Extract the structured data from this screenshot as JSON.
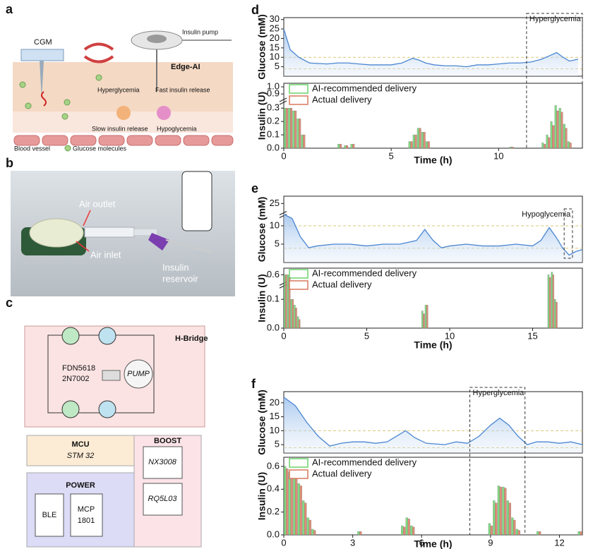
{
  "panels": {
    "a": {
      "label": "a",
      "cgm": "CGM",
      "insulin_pump": "Insulin pump",
      "edge_ai": "Edge-AI",
      "hyperglycemia": "Hyperglycemia",
      "fast_release": "Fast insulin release",
      "slow_release": "Slow insulin release",
      "hypoglycemia": "Hypoglycemia",
      "blood_vessel": "Blood vessel",
      "glucose_molecules": "Glucose molecules"
    },
    "b": {
      "label": "b",
      "air_outlet": "Air outlet",
      "air_inlet": "Air inlet",
      "insulin_1": "Insulin",
      "insulin_2": "reservoir"
    },
    "c": {
      "label": "c",
      "h_bridge": "H-Bridge",
      "fdn": "FDN5618",
      "n7002": "2N7002",
      "pump": "PUMP",
      "mcu": "MCU",
      "stm": "STM 32",
      "boost": "BOOST",
      "nx": "NX3008",
      "power": "POWER",
      "ble": "BLE",
      "mcp": "MCP",
      "mcp_num": "1801",
      "rq": "RQ5L03"
    }
  },
  "chart_data": [
    {
      "type": "line",
      "panel": "d",
      "y_label": "Glucose (mM)",
      "color": "#4a86d0",
      "x": [
        0,
        0.3,
        0.7,
        1.2,
        2,
        2.5,
        3,
        3.5,
        4,
        4.5,
        5,
        5.5,
        6,
        6.3,
        6.6,
        7,
        7.5,
        8,
        8.5,
        9,
        9.5,
        10,
        10.5,
        11,
        11.5,
        12,
        12.4,
        12.7,
        13,
        13.3,
        13.7
      ],
      "values": [
        25,
        14,
        10,
        7,
        6.5,
        7,
        7,
        6.5,
        6,
        6,
        6,
        7,
        9.5,
        8.5,
        7,
        6,
        5.5,
        5.5,
        5,
        6,
        6,
        6.5,
        7,
        7,
        7.5,
        9,
        11,
        12.5,
        10,
        8,
        9
      ],
      "xlim": [
        0,
        13.9
      ],
      "ylim": [
        0,
        31
      ],
      "yticks": [
        5,
        10,
        15,
        20,
        25,
        30
      ],
      "reference_lines": [
        3.9,
        10
      ],
      "annotation": {
        "text": "Hyperglycemia",
        "x": [
          11.3,
          13.9
        ]
      }
    },
    {
      "type": "bar",
      "y_label": "Insulin (U)",
      "x_label": "Time (h)",
      "x": [
        0.1,
        0.3,
        0.5,
        0.7,
        0.9,
        2.6,
        2.9,
        3.2,
        5.9,
        6.1,
        6.3,
        6.5,
        6.7,
        10.6,
        12.1,
        12.3,
        12.5,
        12.7,
        12.9,
        13.1,
        13.3
      ],
      "series": [
        {
          "name": "AI-recommended delivery",
          "color": "#6cd46c",
          "values": [
            0.3,
            0.3,
            0.28,
            0.22,
            0.1,
            0.03,
            0.02,
            0.03,
            0.05,
            0.1,
            0.15,
            0.12,
            0.05,
            0.01,
            0.04,
            0.1,
            0.2,
            0.32,
            0.3,
            0.18,
            0.05
          ]
        },
        {
          "name": "Actual delivery",
          "color": "#d9795f",
          "values": [
            0.3,
            0.3,
            0.28,
            0.22,
            0.1,
            0.03,
            0.02,
            0.03,
            0.05,
            0.1,
            0.15,
            0.12,
            0.05,
            0.01,
            0.03,
            0.08,
            0.17,
            0.28,
            0.27,
            0.15,
            0.04
          ]
        }
      ],
      "xlim": [
        0,
        13.9
      ],
      "xticks": [
        0,
        5,
        10
      ],
      "ylim": [
        0,
        1.05
      ],
      "ybreak": [
        0.35,
        0.85
      ],
      "yticks": [
        {
          "value": 0,
          "label": "0.0"
        },
        0.1,
        0.2,
        0.3,
        0.9,
        {
          "value": 1,
          "label": "1.0"
        }
      ]
    },
    {
      "type": "line",
      "panel": "e",
      "y_label": "Glucose (mM)",
      "color": "#4a86d0",
      "x": [
        0,
        0.5,
        1,
        1.5,
        2,
        3,
        4,
        5,
        6,
        7,
        8,
        8.5,
        9,
        9.5,
        10,
        11,
        12,
        13,
        14,
        15,
        15.5,
        16,
        16.4,
        16.8,
        17.2,
        17.6,
        18
      ],
      "values": [
        14,
        12,
        7,
        4,
        4.5,
        5,
        5,
        4.5,
        5,
        5,
        6,
        9,
        6,
        4,
        4.5,
        5,
        4.5,
        4.5,
        5,
        4.5,
        6,
        9.5,
        7,
        4,
        2,
        3,
        3.5
      ],
      "xlim": [
        0,
        18
      ],
      "ylim": [
        0,
        28
      ],
      "ybreak": [
        13,
        22
      ],
      "yticks": [
        5,
        10,
        25
      ],
      "reference_lines": [
        3.9,
        10
      ],
      "annotation": {
        "text": "Hypoglycemia",
        "x": [
          16.9,
          17.4
        ]
      }
    },
    {
      "type": "bar",
      "y_label": "Insulin (U)",
      "x_label": "Time (h)",
      "x": [
        0.1,
        0.3,
        0.5,
        0.7,
        0.9,
        8.4,
        8.6,
        16.0,
        16.2,
        16.4
      ],
      "series": [
        {
          "name": "AI-recommended delivery",
          "color": "#6cd46c",
          "values": [
            0.6,
            0.6,
            0.1,
            0.08,
            0.04,
            0.06,
            0.08,
            0.6,
            0.62,
            0.1
          ]
        },
        {
          "name": "Actual delivery",
          "color": "#d9795f",
          "values": [
            0.6,
            0.58,
            0.1,
            0.07,
            0.03,
            0.05,
            0.08,
            0.58,
            0.6,
            0.09
          ]
        }
      ],
      "xlim": [
        0,
        18
      ],
      "xticks": [
        0,
        5,
        10,
        15
      ],
      "ylim": [
        0,
        0.65
      ],
      "ybreak": [
        0.15,
        0.55
      ],
      "yticks": [
        {
          "value": 0,
          "label": "0.0"
        },
        0.1,
        0.6
      ]
    },
    {
      "type": "line",
      "panel": "f",
      "y_label": "Glucose (mM)",
      "color": "#4a86d0",
      "x": [
        0,
        0.5,
        1,
        1.5,
        2,
        2.5,
        3,
        3.5,
        4,
        4.5,
        5,
        5.3,
        5.7,
        6.2,
        7,
        7.5,
        8,
        8.5,
        9,
        9.4,
        9.8,
        10.2,
        10.6,
        11,
        11.5,
        12,
        12.5,
        13
      ],
      "values": [
        22,
        19,
        13,
        8,
        4.5,
        5.5,
        6,
        6,
        5.5,
        6,
        8.5,
        10,
        7.5,
        5.5,
        5,
        6,
        5.5,
        8,
        12,
        14.5,
        12,
        8,
        5,
        6,
        6,
        5.5,
        6,
        5
      ],
      "xlim": [
        0,
        13
      ],
      "ylim": [
        2,
        24
      ],
      "yticks": [
        5,
        10,
        15,
        20
      ],
      "reference_lines": [
        3.9,
        10
      ],
      "annotation": {
        "text": "Hyperglycemia",
        "x": [
          8.1,
          10.5
        ]
      }
    },
    {
      "type": "bar",
      "y_label": "Insulin (U)",
      "x_label": "Time (h)",
      "x": [
        0.1,
        0.3,
        0.5,
        0.7,
        0.9,
        1.1,
        1.3,
        3.3,
        5.2,
        5.4,
        5.6,
        9.0,
        9.2,
        9.4,
        9.6,
        9.8,
        10.0,
        10.2,
        11.1,
        12.9
      ],
      "series": [
        {
          "name": "AI-recommended delivery",
          "color": "#6cd46c",
          "values": [
            0.6,
            0.55,
            0.52,
            0.45,
            0.3,
            0.15,
            0.05,
            0.03,
            0.08,
            0.15,
            0.08,
            0.1,
            0.3,
            0.43,
            0.42,
            0.3,
            0.15,
            0.05,
            0.03,
            0.03
          ]
        },
        {
          "name": "Actual delivery",
          "color": "#d9795f",
          "values": [
            0.58,
            0.53,
            0.5,
            0.43,
            0.28,
            0.13,
            0.04,
            0.03,
            0.07,
            0.14,
            0.07,
            0.08,
            0.28,
            0.42,
            0.41,
            0.28,
            0.13,
            0.04,
            0.03,
            0.03
          ]
        }
      ],
      "xlim": [
        0,
        13
      ],
      "xticks": [
        0,
        3,
        6,
        9,
        12
      ],
      "ylim": [
        0,
        0.68
      ],
      "yticks": [
        {
          "value": 0,
          "label": "0.0"
        },
        0.2,
        0.4,
        0.6
      ]
    }
  ]
}
